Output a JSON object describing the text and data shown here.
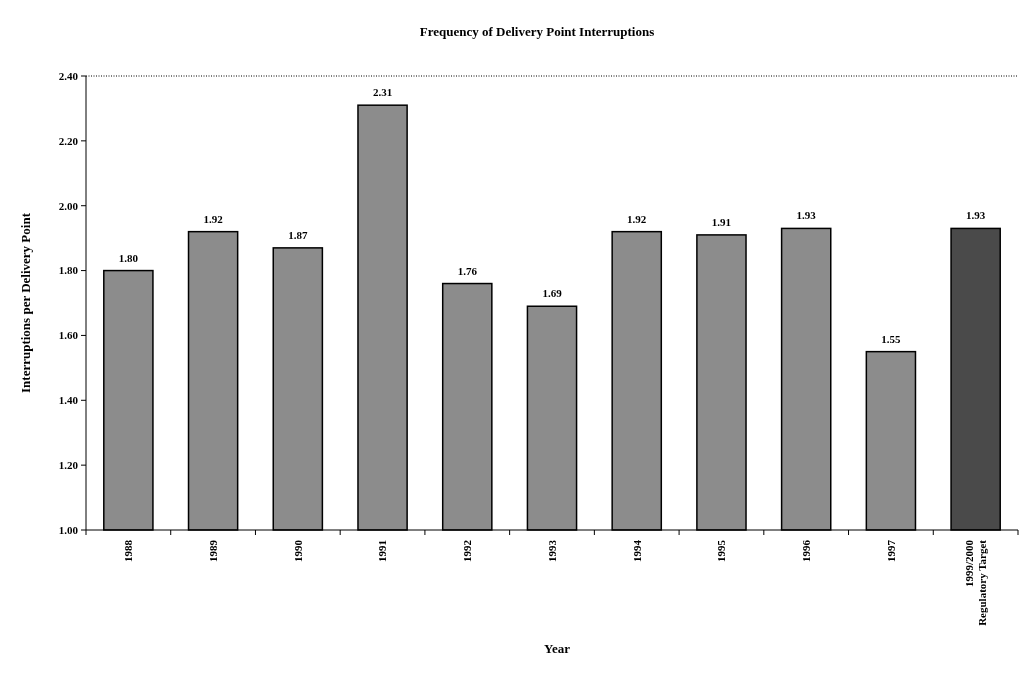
{
  "chart_data": {
    "type": "bar",
    "title": "Frequency of Delivery Point Interruptions",
    "xlabel": "Year",
    "ylabel": "Interruptions per Delivery Point",
    "categories": [
      "1988",
      "1989",
      "1990",
      "1991",
      "1992",
      "1993",
      "1994",
      "1995",
      "1996",
      "1997",
      "1999/2000\nRegulatory Target"
    ],
    "values": [
      1.8,
      1.92,
      1.87,
      2.31,
      1.76,
      1.69,
      1.92,
      1.91,
      1.93,
      1.55,
      1.93
    ],
    "colors": [
      "#8c8c8c",
      "#8c8c8c",
      "#8c8c8c",
      "#8c8c8c",
      "#8c8c8c",
      "#8c8c8c",
      "#8c8c8c",
      "#8c8c8c",
      "#8c8c8c",
      "#8c8c8c",
      "#4a4a4a"
    ],
    "ylim": [
      1.0,
      2.4
    ],
    "yticks": [
      {
        "value": 1.0,
        "label": "1.00"
      },
      {
        "value": 1.2,
        "label": "1.20"
      },
      {
        "value": 1.4,
        "label": "1.40"
      },
      {
        "value": 1.6,
        "label": "1.60"
      },
      {
        "value": 1.8,
        "label": "1.80"
      },
      {
        "value": 2.0,
        "label": "2.00"
      },
      {
        "value": 2.2,
        "label": "2.20"
      },
      {
        "value": 2.4,
        "label": "2.40"
      }
    ],
    "value_labels": [
      "1.80",
      "1.92",
      "1.87",
      "2.31",
      "1.76",
      "1.69",
      "1.92",
      "1.91",
      "1.93",
      "1.55",
      "1.93"
    ],
    "grid": false
  }
}
